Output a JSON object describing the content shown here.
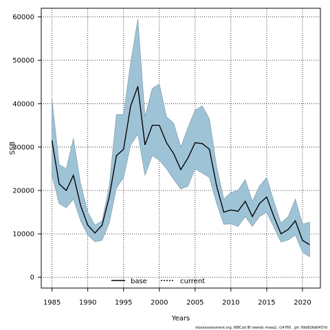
{
  "chart_data": {
    "type": "line",
    "xlabel": "Years",
    "ylabel": "SSB",
    "xlim": [
      1983.5,
      2022.5
    ],
    "ylim": [
      -2500,
      62000
    ],
    "xticks": [
      1985,
      1990,
      1995,
      2000,
      2005,
      2010,
      2015,
      2020
    ],
    "yticks": [
      0,
      10000,
      20000,
      30000,
      40000,
      50000,
      60000
    ],
    "grid": true,
    "legend_position": "bottom-left",
    "colors": {
      "band": "#9fc3d6",
      "band_edge": "#7f9aa8",
      "line": "#000000"
    },
    "x": [
      1985,
      1986,
      1987,
      1988,
      1989,
      1990,
      1991,
      1992,
      1993,
      1994,
      1995,
      1996,
      1997,
      1998,
      1999,
      2000,
      2001,
      2002,
      2003,
      2004,
      2005,
      2006,
      2007,
      2008,
      2009,
      2010,
      2011,
      2012,
      2013,
      2014,
      2015,
      2016,
      2017,
      2018,
      2019,
      2020,
      2021
    ],
    "series": [
      {
        "name": "base",
        "style": "solid",
        "values": [
          31500,
          21500,
          20000,
          23500,
          16500,
          12000,
          10200,
          12000,
          18500,
          28000,
          29500,
          39500,
          44000,
          30500,
          35000,
          35000,
          31000,
          28500,
          24800,
          27500,
          31000,
          30800,
          29500,
          21000,
          15000,
          15500,
          15200,
          17500,
          14000,
          17000,
          18500,
          14000,
          10000,
          11000,
          13000,
          8500,
          7500
        ]
      },
      {
        "name": "current",
        "style": "dotted",
        "values": [
          31500,
          21500,
          20000,
          23500,
          16500,
          12000,
          10200,
          12000,
          18500,
          28000,
          29500,
          39500,
          44000,
          30500,
          35000,
          35000,
          31000,
          28500,
          24800,
          27500,
          31000,
          30800,
          29500,
          21000,
          15000,
          15500,
          15200,
          17500,
          14000,
          17000,
          18500,
          14000,
          10000,
          11000,
          13000,
          8500,
          7500
        ]
      }
    ],
    "confidence_band": {
      "upper": [
        41000,
        26000,
        25000,
        32000,
        21500,
        15000,
        12000,
        13000,
        21000,
        37500,
        37500,
        49500,
        59500,
        37000,
        43500,
        44500,
        37000,
        35500,
        30000,
        34500,
        38500,
        39500,
        36500,
        25500,
        18000,
        19500,
        20000,
        22500,
        17500,
        21000,
        23000,
        17500,
        12500,
        14000,
        18000,
        12200,
        12700
      ],
      "lower": [
        23500,
        17000,
        16000,
        18000,
        13000,
        9700,
        8200,
        8500,
        12500,
        20500,
        23000,
        30500,
        33000,
        23500,
        28000,
        27000,
        25000,
        22500,
        20300,
        21000,
        25000,
        24000,
        23000,
        17000,
        12200,
        12300,
        11700,
        14000,
        11700,
        14000,
        15000,
        11500,
        8100,
        8600,
        9700,
        5800,
        4700
      ]
    },
    "legend": [
      {
        "label": "base",
        "style": "solid"
      },
      {
        "label": "current",
        "style": "dotted"
      }
    ]
  },
  "footer_text": "stockassessment.org, WBCod IB newidx msea2, r14760 , git: 69d926d0437d"
}
